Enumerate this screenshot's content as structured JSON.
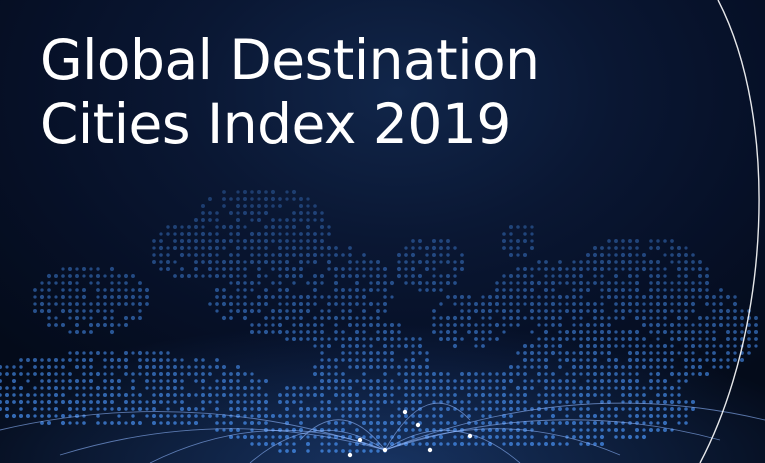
{
  "cover": {
    "title_line_1": "Global Destination",
    "title_line_2": "Cities Index 2019"
  },
  "colors": {
    "background": "#071226",
    "dots": "#3f7fd6",
    "arc_line": "#ffffff",
    "flight_paths": "#8fb8ff"
  }
}
